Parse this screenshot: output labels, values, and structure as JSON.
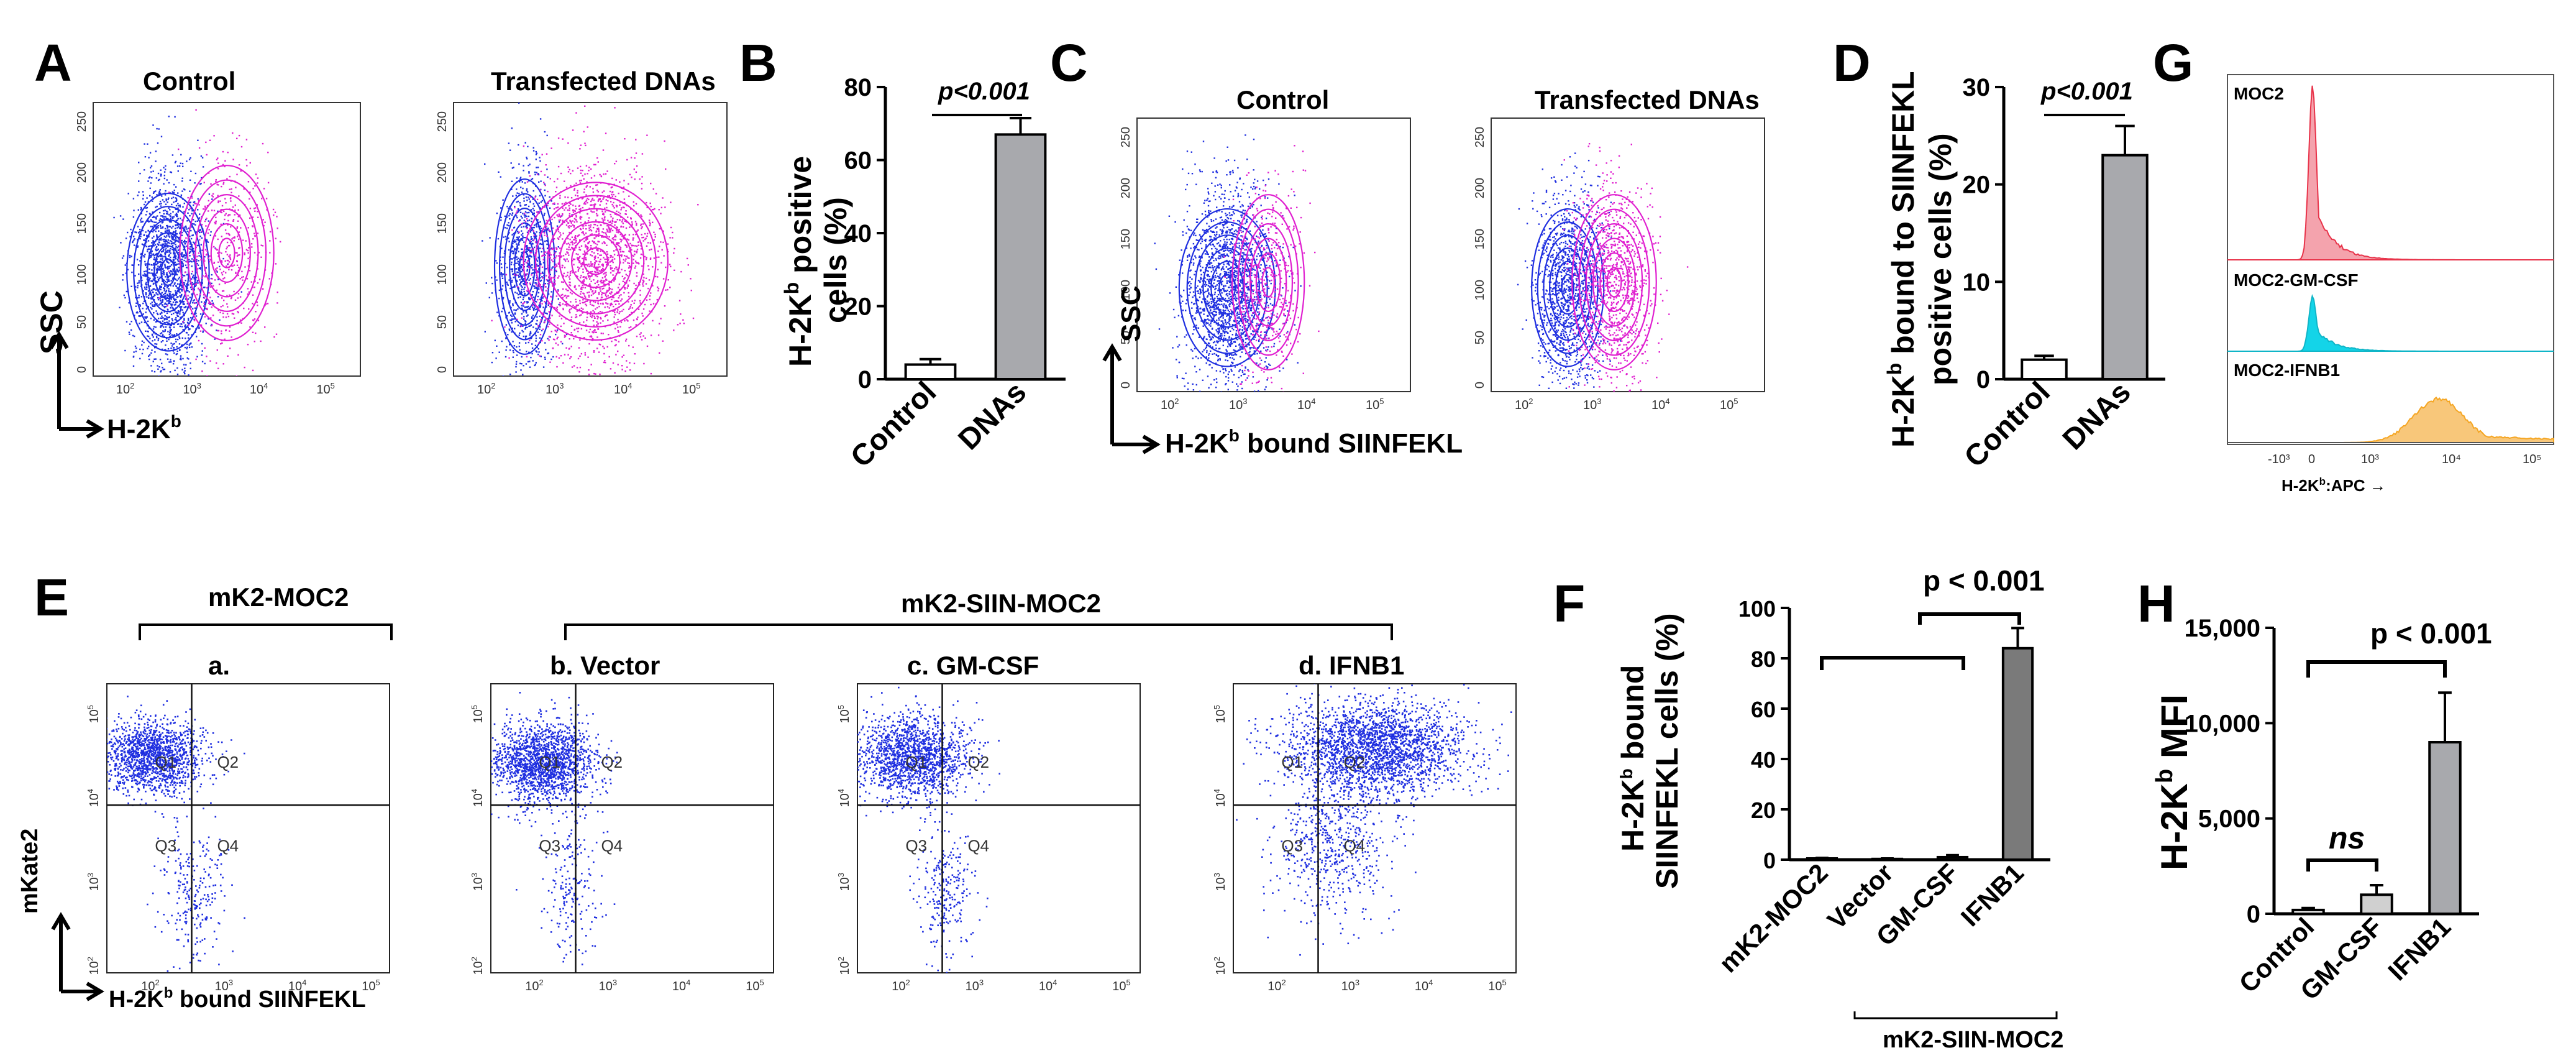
{
  "panels": {
    "A": {
      "letter": "A",
      "plots": [
        "Control",
        "Transfected DNAs"
      ],
      "ssc": "SSC",
      "xlabel": "H-2K",
      "xsup": "b",
      "yticks": [
        "250",
        "200",
        "150",
        "100",
        "50",
        "0"
      ],
      "xticks": [
        "10",
        "10",
        "10",
        "10"
      ],
      "xexp": [
        "2",
        "3",
        "4",
        "5"
      ]
    },
    "B": {
      "letter": "B",
      "ylabel_l1": "H-2K",
      "ylabel_sup": "b",
      "ylabel_l1b": " positive",
      "ylabel_l2": "cells (%)",
      "pvalue": "p<0.001"
    },
    "C": {
      "letter": "C",
      "plots": [
        "Control",
        "Transfected DNAs"
      ],
      "ssc": "SSC",
      "xlabel": "H-2K",
      "xsup": "b",
      "xlabel_rest": " bound SIINFEKL"
    },
    "D": {
      "letter": "D",
      "ylabel_l1": "H-2K",
      "ylabel_sup": "b",
      "ylabel_l1b": " bound to SIINFEKL",
      "ylabel_l2": "positive cells (%)",
      "pvalue": "p<0.001"
    },
    "E": {
      "letter": "E",
      "group1": "mK2-MOC2",
      "group2": "mK2-SIIN-MOC2",
      "plots": [
        "a.",
        "b.  Vector",
        "c.  GM-CSF",
        "d.  IFNB1"
      ],
      "ylabel": "mKate2",
      "xlabel": "H-2K",
      "xsup": "b",
      "xlabel_rest": " bound SIINFEKL",
      "quadrants": [
        "Q1",
        "Q2",
        "Q3",
        "Q4"
      ]
    },
    "F": {
      "letter": "F",
      "ylabel_l1": "H-2K",
      "ylabel_sup": "b",
      "ylabel_l1b": " bound",
      "ylabel_l2": "SIINFEKL cells (%)",
      "pvalue": "p < 0.001",
      "group_label": "mK2-SIIN-MOC2"
    },
    "G": {
      "letter": "G",
      "tracks": [
        "MOC2",
        "MOC2-GM-CSF",
        "MOC2-IFNB1"
      ],
      "xlabel": "H-2K",
      "xsup": "b",
      "xlabel_rest": ":APC →",
      "xticks": [
        "-10³",
        "0",
        "10³",
        "10⁴",
        "10⁵"
      ]
    },
    "H": {
      "letter": "H",
      "ylabel": "H-2K",
      "ylabel_sup": "b",
      "ylabel_rest": " MFI",
      "pvalue": "p < 0.001",
      "ns": "ns"
    }
  },
  "colors": {
    "blue": "#1f2fe0",
    "magenta": "#e020d0",
    "gray": "#a8a9ad",
    "darkgray": "#7a7a7a",
    "red": "#e8334a",
    "cyan": "#14d4e8",
    "orange": "#f5a623"
  },
  "chart_data": [
    {
      "id": "B",
      "type": "bar",
      "categories": [
        "Control",
        "DNAs"
      ],
      "values": [
        4,
        67
      ],
      "errors": [
        1.5,
        4.5
      ],
      "ylim": [
        0,
        80
      ],
      "yticks": [
        0,
        20,
        40,
        60,
        80
      ],
      "ylabel": "H-2Kb positive cells (%)",
      "fills": [
        "#ffffff",
        "#a8a9ad"
      ]
    },
    {
      "id": "D",
      "type": "bar",
      "categories": [
        "Control",
        "DNAs"
      ],
      "values": [
        2,
        23
      ],
      "errors": [
        0.4,
        3
      ],
      "ylim": [
        0,
        30
      ],
      "yticks": [
        0,
        10,
        20,
        30
      ],
      "ylabel": "H-2Kb bound to SIINFEKL positive cells (%)",
      "fills": [
        "#ffffff",
        "#a8a9ad"
      ]
    },
    {
      "id": "F",
      "type": "bar",
      "categories": [
        "mK2-MOC2",
        "Vector",
        "GM-CSF",
        "IFNB1"
      ],
      "values": [
        0.5,
        0.3,
        1,
        84
      ],
      "errors": [
        0.2,
        0.2,
        0.8,
        8
      ],
      "ylim": [
        0,
        100
      ],
      "yticks": [
        0,
        20,
        40,
        60,
        80,
        100
      ],
      "ylabel": "H-2Kb bound SIINFEKL cells (%)",
      "fills": [
        "#ffffff",
        "#ffffff",
        "#a8a9ad",
        "#7a7a7a"
      ]
    },
    {
      "id": "H",
      "type": "bar",
      "categories": [
        "Control",
        "GM-CSF",
        "IFNB1"
      ],
      "values": [
        200,
        1000,
        9000
      ],
      "errors": [
        100,
        500,
        2600
      ],
      "ylim": [
        0,
        15000
      ],
      "yticks": [
        0,
        5000,
        10000,
        15000
      ],
      "ytick_labels": [
        "0",
        "5,000",
        "10,000",
        "15,000"
      ],
      "ylabel": "H-2Kb MFI",
      "fills": [
        "#ffffff",
        "#d0d0d0",
        "#a8a9ad"
      ]
    }
  ]
}
